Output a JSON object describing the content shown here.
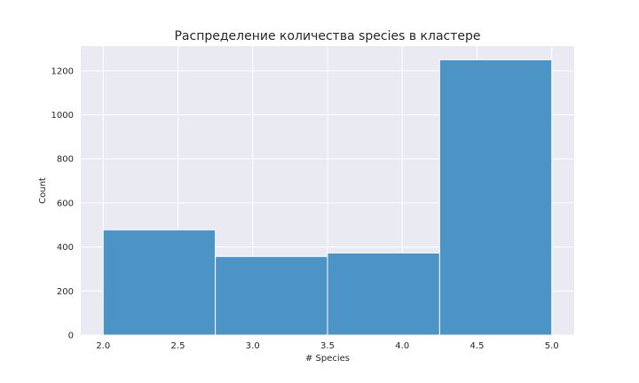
{
  "chart_data": {
    "type": "bar",
    "title": "Распределение количества species в кластере",
    "xlabel": "# Species",
    "ylabel": "Count",
    "bins": [
      {
        "start": 2.0,
        "end": 2.75,
        "value": 478
      },
      {
        "start": 2.75,
        "end": 3.5,
        "value": 357
      },
      {
        "start": 3.5,
        "end": 4.25,
        "value": 373
      },
      {
        "start": 4.25,
        "end": 5.0,
        "value": 1250
      }
    ],
    "xlim": [
      1.85,
      5.15
    ],
    "ylim": [
      0,
      1312
    ],
    "xticks": [
      2.0,
      2.5,
      3.0,
      3.5,
      4.0,
      4.5,
      5.0
    ],
    "xtick_labels": [
      "2.0",
      "2.5",
      "3.0",
      "3.5",
      "4.0",
      "4.5",
      "5.0"
    ],
    "yticks": [
      0,
      200,
      400,
      600,
      800,
      1000,
      1200
    ],
    "ytick_labels": [
      "0",
      "200",
      "400",
      "600",
      "800",
      "1000",
      "1200"
    ],
    "grid": true,
    "colors": {
      "bar": "#4c93c6",
      "bar_edge": "#ffffff",
      "plot_background": "#eaeaf2",
      "grid": "#ffffff",
      "text": "#262626"
    }
  }
}
